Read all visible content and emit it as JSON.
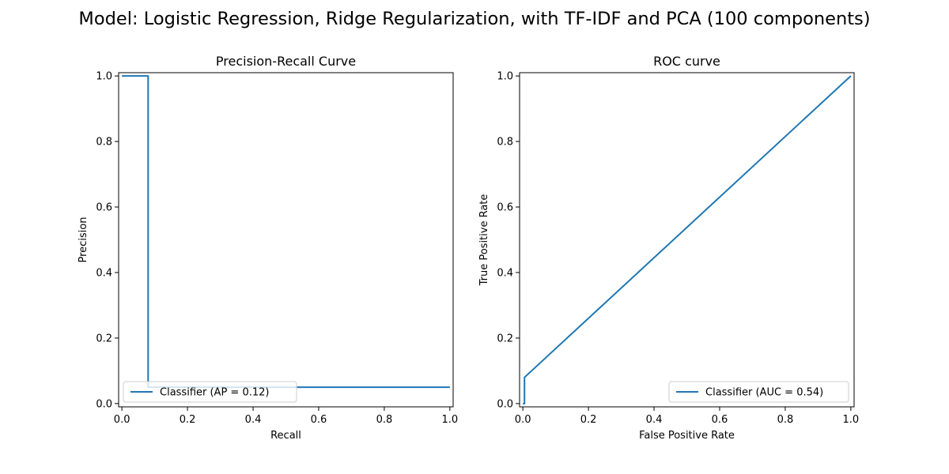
{
  "figure": {
    "suptitle": "Model: Logistic Regression, Ridge Regularization, with TF-IDF and PCA (100 components)"
  },
  "chart_data": [
    {
      "type": "line",
      "title": "Precision-Recall Curve",
      "xlabel": "Recall",
      "ylabel": "Precision",
      "xlim": [
        -0.01,
        1.01
      ],
      "ylim": [
        -0.01,
        1.01
      ],
      "xticks": [
        "0.0",
        "0.2",
        "0.4",
        "0.6",
        "0.8",
        "1.0"
      ],
      "yticks": [
        "0.0",
        "0.2",
        "0.4",
        "0.6",
        "0.8",
        "1.0"
      ],
      "grid": false,
      "legend_placement": "lower-left",
      "color": "#1f77b4",
      "series": [
        {
          "name": "Classifier (AP = 0.12)",
          "x": [
            0.0,
            0.08,
            0.08,
            0.08,
            1.0
          ],
          "y": [
            1.0,
            1.0,
            0.06,
            0.05,
            0.05
          ]
        }
      ]
    },
    {
      "type": "line",
      "title": "ROC curve",
      "xlabel": "False Positive Rate",
      "ylabel": "True Positive Rate",
      "xlim": [
        -0.01,
        1.01
      ],
      "ylim": [
        -0.01,
        1.01
      ],
      "xticks": [
        "0.0",
        "0.2",
        "0.4",
        "0.6",
        "0.8",
        "1.0"
      ],
      "yticks": [
        "0.0",
        "0.2",
        "0.4",
        "0.6",
        "0.8",
        "1.0"
      ],
      "grid": false,
      "legend_placement": "lower-right",
      "color": "#1f77b4",
      "series": [
        {
          "name": "Classifier (AUC = 0.54)",
          "x": [
            0.0,
            0.005,
            0.005,
            1.0
          ],
          "y": [
            0.0,
            0.0,
            0.08,
            1.0
          ]
        }
      ]
    }
  ]
}
